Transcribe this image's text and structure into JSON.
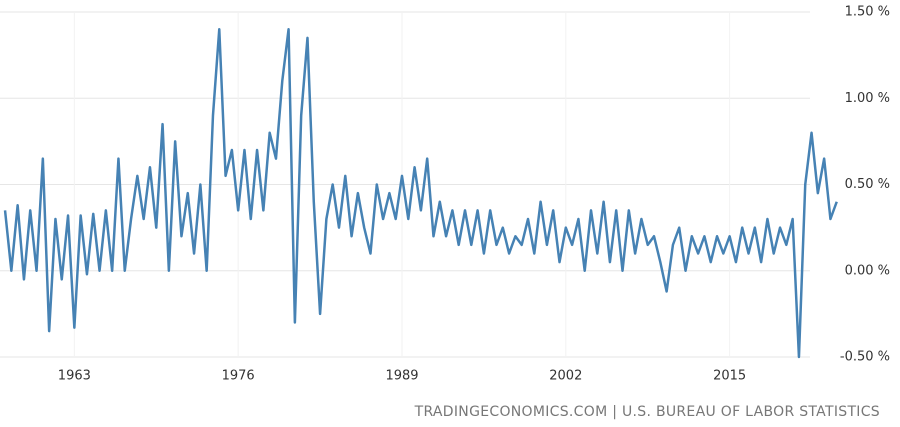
{
  "chart_data": {
    "type": "line",
    "source": "TRADINGECONOMICS.COM | U.S. BUREAU OF LABOR STATISTICS",
    "xlim": [
      1957.1,
      2023.6
    ],
    "xticks": [
      1963,
      1976,
      1989,
      2002,
      2015
    ],
    "ylim": [
      -0.5,
      1.5
    ],
    "yticks": [
      {
        "value": 1.5,
        "label": "1.50 %"
      },
      {
        "value": 1.0,
        "label": "1.00 %"
      },
      {
        "value": 0.5,
        "label": "0.50 %"
      },
      {
        "value": 0.0,
        "label": "0.00 %"
      },
      {
        "value": -0.5,
        "label": "-0.50 %"
      }
    ],
    "grid": true,
    "x": [
      1957.5,
      1958,
      1958.5,
      1959,
      1959.5,
      1960,
      1960.5,
      1961,
      1961.5,
      1962,
      1962.5,
      1963,
      1963.5,
      1964,
      1964.5,
      1965,
      1965.5,
      1966,
      1966.5,
      1967,
      1967.5,
      1968,
      1968.5,
      1969,
      1969.5,
      1970,
      1970.5,
      1971,
      1971.5,
      1972,
      1972.5,
      1973,
      1973.5,
      1974,
      1974.5,
      1975,
      1975.5,
      1976,
      1976.5,
      1977,
      1977.5,
      1978,
      1978.5,
      1979,
      1979.5,
      1980,
      1980.5,
      1981,
      1981.5,
      1982,
      1982.5,
      1983,
      1983.5,
      1984,
      1984.5,
      1985,
      1985.5,
      1986,
      1986.5,
      1987,
      1987.5,
      1988,
      1988.5,
      1989,
      1989.5,
      1990,
      1990.5,
      1991,
      1991.5,
      1992,
      1992.5,
      1993,
      1993.5,
      1994,
      1994.5,
      1995,
      1995.5,
      1996,
      1996.5,
      1997,
      1997.5,
      1998,
      1998.5,
      1999,
      1999.5,
      2000,
      2000.5,
      2001,
      2001.5,
      2002,
      2002.5,
      2003,
      2003.5,
      2004,
      2004.5,
      2005,
      2005.5,
      2006,
      2006.5,
      2007,
      2007.5,
      2008,
      2008.5,
      2009,
      2009.5,
      2010,
      2010.5,
      2011,
      2011.5,
      2012,
      2012.5,
      2013,
      2013.5,
      2014,
      2014.5,
      2015,
      2015.5,
      2016,
      2016.5,
      2017,
      2017.5,
      2018,
      2018.5,
      2019,
      2019.5,
      2020,
      2020.5,
      2021,
      2021.5,
      2022,
      2022.5,
      2023,
      2023.5
    ],
    "series": [
      {
        "color": "#4682b4",
        "values": [
          0.35,
          0.0,
          0.38,
          -0.05,
          0.35,
          0.0,
          0.65,
          -0.35,
          0.3,
          -0.05,
          0.32,
          -0.33,
          0.32,
          -0.02,
          0.33,
          0.0,
          0.35,
          0.0,
          0.65,
          0.0,
          0.3,
          0.55,
          0.3,
          0.6,
          0.25,
          0.85,
          0.0,
          0.75,
          0.2,
          0.45,
          0.1,
          0.5,
          0.0,
          0.9,
          1.4,
          0.55,
          0.7,
          0.35,
          0.7,
          0.3,
          0.7,
          0.35,
          0.8,
          0.65,
          1.1,
          1.4,
          -0.3,
          0.9,
          1.35,
          0.4,
          -0.25,
          0.3,
          0.5,
          0.25,
          0.55,
          0.2,
          0.45,
          0.25,
          0.1,
          0.5,
          0.3,
          0.45,
          0.3,
          0.55,
          0.3,
          0.6,
          0.35,
          0.65,
          0.2,
          0.4,
          0.2,
          0.35,
          0.15,
          0.35,
          0.15,
          0.35,
          0.1,
          0.35,
          0.15,
          0.25,
          0.1,
          0.2,
          0.15,
          0.3,
          0.1,
          0.4,
          0.15,
          0.35,
          0.05,
          0.25,
          0.15,
          0.3,
          0.0,
          0.35,
          0.1,
          0.4,
          0.05,
          0.35,
          0.0,
          0.35,
          0.1,
          0.3,
          0.15,
          0.2,
          0.05,
          -0.12,
          0.15,
          0.25,
          0.0,
          0.2,
          0.1,
          0.2,
          0.05,
          0.2,
          0.1,
          0.2,
          0.05,
          0.25,
          0.1,
          0.25,
          0.05,
          0.3,
          0.1,
          0.25,
          0.15,
          0.3,
          -0.5,
          0.5,
          0.8,
          0.45,
          0.65,
          0.3,
          0.4
        ]
      }
    ]
  }
}
